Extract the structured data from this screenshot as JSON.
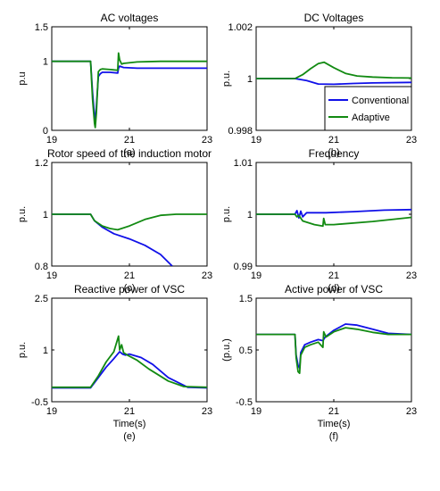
{
  "colors": {
    "conventional": "#1010e8",
    "adaptive": "#128a12",
    "axis": "#000000"
  },
  "legend": {
    "placement": "bottom-right of panel (b)",
    "items": [
      "Conventional",
      "Adaptive"
    ]
  },
  "chart_data": [
    {
      "type": "line",
      "caption": "(a)",
      "title": "AC voltages",
      "xlabel": "",
      "ylabel": "p.u",
      "xlim": [
        19,
        23
      ],
      "ylim": [
        0,
        1.5
      ],
      "xticks": [
        "19",
        "21",
        "23"
      ],
      "yticks": [
        "0",
        "1",
        "1.5"
      ],
      "series": [
        {
          "name": "Conventional",
          "x": [
            19,
            19.8,
            20.0,
            20.05,
            20.1,
            20.12,
            20.15,
            20.2,
            20.25,
            20.3,
            20.5,
            20.7,
            20.72,
            20.75,
            20.8,
            20.85,
            21.2,
            22,
            23
          ],
          "y": [
            1.0,
            1.0,
            1.0,
            0.55,
            0.2,
            0.12,
            0.35,
            0.78,
            0.82,
            0.84,
            0.84,
            0.83,
            0.9,
            0.93,
            0.92,
            0.91,
            0.9,
            0.9,
            0.9
          ]
        },
        {
          "name": "Adaptive",
          "x": [
            19,
            19.8,
            20.0,
            20.05,
            20.1,
            20.12,
            20.15,
            20.2,
            20.25,
            20.3,
            20.5,
            20.7,
            20.72,
            20.75,
            20.8,
            20.85,
            21.2,
            21.8,
            22.2,
            23
          ],
          "y": [
            1.0,
            1.0,
            1.0,
            0.45,
            0.1,
            0.04,
            0.25,
            0.85,
            0.88,
            0.89,
            0.88,
            0.87,
            1.12,
            1.02,
            0.96,
            0.97,
            0.99,
            1.0,
            1.0,
            1.0
          ]
        }
      ]
    },
    {
      "type": "line",
      "caption": "(b)",
      "title": "DC Voltages",
      "xlabel": "",
      "ylabel": "p.u.",
      "xlim": [
        19,
        23
      ],
      "ylim": [
        0.998,
        1.002
      ],
      "xticks": [
        "19",
        "21",
        "23"
      ],
      "yticks": [
        "0.998",
        "1",
        "1.002"
      ],
      "series": [
        {
          "name": "Conventional",
          "x": [
            19,
            20.0,
            20.3,
            20.6,
            21.0,
            21.5,
            22.0,
            23
          ],
          "y": [
            1.0,
            1.0,
            0.99992,
            0.99979,
            0.99978,
            0.99981,
            0.99983,
            0.99985
          ]
        },
        {
          "name": "Adaptive",
          "x": [
            19,
            20.0,
            20.2,
            20.4,
            20.6,
            20.75,
            21.0,
            21.3,
            21.6,
            22.0,
            22.5,
            23
          ],
          "y": [
            1.0,
            1.0,
            1.00015,
            1.00038,
            1.00058,
            1.00063,
            1.00042,
            1.0002,
            1.0001,
            1.00006,
            1.00003,
            1.00002
          ]
        }
      ]
    },
    {
      "type": "line",
      "caption": "(c)",
      "title": "Rotor speed of the induction motor",
      "xlabel": "",
      "ylabel": "p.u.",
      "xlim": [
        19,
        23
      ],
      "ylim": [
        0.8,
        1.2
      ],
      "xticks": [
        "19",
        "21",
        "23"
      ],
      "yticks": [
        "0.8",
        "1",
        "1.2"
      ],
      "series": [
        {
          "name": "Conventional",
          "x": [
            19,
            20.0,
            20.1,
            20.3,
            20.6,
            21.0,
            21.4,
            21.8,
            22.1
          ],
          "y": [
            1.0,
            1.0,
            0.975,
            0.95,
            0.925,
            0.905,
            0.88,
            0.845,
            0.8
          ]
        },
        {
          "name": "Adaptive",
          "x": [
            19,
            20.0,
            20.1,
            20.3,
            20.5,
            20.7,
            21.0,
            21.4,
            21.8,
            22.2,
            23
          ],
          "y": [
            1.0,
            1.0,
            0.975,
            0.955,
            0.945,
            0.94,
            0.955,
            0.98,
            0.996,
            1.0,
            1.0
          ]
        }
      ]
    },
    {
      "type": "line",
      "caption": "(d)",
      "title": "Frequency",
      "xlabel": "",
      "ylabel": "p.u.",
      "xlim": [
        19,
        23
      ],
      "ylim": [
        0.99,
        1.01
      ],
      "xticks": [
        "19",
        "21",
        "23"
      ],
      "yticks": [
        "0.99",
        "1",
        "1.01"
      ],
      "series": [
        {
          "name": "Conventional",
          "x": [
            19,
            20.0,
            20.05,
            20.1,
            20.15,
            20.2,
            20.3,
            20.8,
            21.5,
            22.3,
            23
          ],
          "y": [
            1.0,
            1.0,
            1.0007,
            0.9993,
            1.0006,
            0.9995,
            1.0003,
            1.0003,
            1.0005,
            1.0008,
            1.0009
          ]
        },
        {
          "name": "Adaptive",
          "x": [
            19,
            20.0,
            20.05,
            20.1,
            20.2,
            20.5,
            20.72,
            20.74,
            20.78,
            21.0,
            22.0,
            23
          ],
          "y": [
            1.0,
            1.0,
            0.9995,
            0.9998,
            0.9987,
            0.998,
            0.9977,
            0.9992,
            0.998,
            0.998,
            0.9986,
            0.9994
          ]
        }
      ]
    },
    {
      "type": "line",
      "caption": "(e)",
      "title": "Reactive power of VSC",
      "xlabel": "Time(s)",
      "ylabel": "p.u.",
      "xlim": [
        19,
        23
      ],
      "ylim": [
        -0.5,
        2.5
      ],
      "xticks": [
        "19",
        "21",
        "23"
      ],
      "yticks": [
        "-0.5",
        "1",
        "2.5"
      ],
      "series": [
        {
          "name": "Conventional",
          "x": [
            19,
            20.0,
            20.2,
            20.4,
            20.6,
            20.75,
            20.82,
            20.9,
            21.0,
            21.3,
            21.6,
            22.0,
            22.5,
            23
          ],
          "y": [
            -0.1,
            -0.1,
            0.2,
            0.5,
            0.75,
            0.95,
            0.88,
            0.85,
            0.88,
            0.78,
            0.58,
            0.2,
            -0.08,
            -0.1
          ]
        },
        {
          "name": "Adaptive",
          "x": [
            19,
            20.0,
            20.2,
            20.4,
            20.6,
            20.72,
            20.75,
            20.8,
            20.85,
            20.95,
            21.2,
            21.5,
            22.0,
            22.4,
            23
          ],
          "y": [
            -0.08,
            -0.08,
            0.25,
            0.65,
            0.95,
            1.4,
            1.0,
            1.15,
            0.92,
            0.85,
            0.7,
            0.45,
            0.1,
            -0.06,
            -0.08
          ]
        }
      ]
    },
    {
      "type": "line",
      "caption": "(f)",
      "title": "Active power of VSC",
      "xlabel": "Time(s)",
      "ylabel": "(p.u.)",
      "xlim": [
        19,
        23
      ],
      "ylim": [
        -0.5,
        1.5
      ],
      "xticks": [
        "19",
        "21",
        "23"
      ],
      "yticks": [
        "-0.5",
        "0.5",
        "1.5"
      ],
      "series": [
        {
          "name": "Conventional",
          "x": [
            19,
            20.0,
            20.03,
            20.08,
            20.12,
            20.15,
            20.25,
            20.4,
            20.6,
            20.72,
            20.78,
            21.0,
            21.3,
            21.6,
            22.0,
            22.4,
            23
          ],
          "y": [
            0.8,
            0.8,
            0.4,
            0.2,
            0.15,
            0.45,
            0.6,
            0.65,
            0.7,
            0.68,
            0.75,
            0.88,
            1.0,
            0.98,
            0.9,
            0.82,
            0.8
          ]
        },
        {
          "name": "Adaptive",
          "x": [
            19,
            20.0,
            20.03,
            20.08,
            20.12,
            20.15,
            20.25,
            20.4,
            20.6,
            20.72,
            20.74,
            20.8,
            21.0,
            21.3,
            21.6,
            22.0,
            22.4,
            23
          ],
          "y": [
            0.8,
            0.8,
            0.35,
            0.08,
            0.05,
            0.4,
            0.55,
            0.6,
            0.65,
            0.55,
            0.85,
            0.75,
            0.85,
            0.93,
            0.9,
            0.84,
            0.8,
            0.8
          ]
        }
      ]
    }
  ]
}
